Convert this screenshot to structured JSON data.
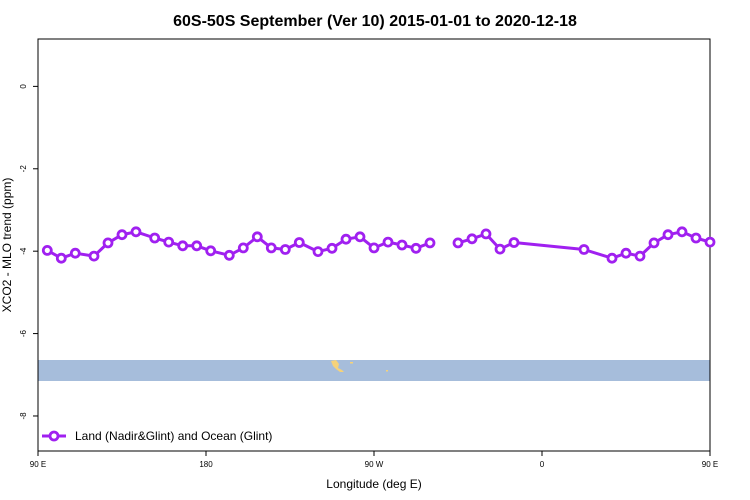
{
  "chart_data": {
    "type": "line",
    "title": "60S-50S September (Ver 10)   2015-01-01 to 2020-12-18",
    "xlabel": "Longitude (deg E)",
    "ylabel": "XCO2 - MLO trend (ppm)",
    "xlim": [
      90,
      450
    ],
    "ylim": [
      -8.85,
      1.15
    ],
    "x_ticks": [
      {
        "value": 90,
        "label": "90 E"
      },
      {
        "value": 180,
        "label": "180"
      },
      {
        "value": 270,
        "label": "90 W"
      },
      {
        "value": 360,
        "label": "0"
      },
      {
        "value": 450,
        "label": "90 E"
      }
    ],
    "y_ticks": [
      {
        "value": 0,
        "label": "0"
      },
      {
        "value": -2,
        "label": "-2"
      },
      {
        "value": -4,
        "label": "-4"
      },
      {
        "value": -6,
        "label": "-6"
      },
      {
        "value": -8,
        "label": "-8"
      }
    ],
    "series": [
      {
        "name": "Land (Nadir&Glint) and Ocean (Glint)",
        "color": "#a020f0",
        "x": [
          95,
          102.5,
          110,
          120,
          127.5,
          135,
          142.5,
          152.5,
          160,
          167.5,
          175,
          182.5,
          192.5,
          200,
          207.5,
          215,
          222.5,
          230,
          240,
          247.5,
          255,
          262.5,
          270,
          277.5,
          285,
          292.5,
          300,
          307.5,
          315,
          322.5,
          330,
          337.5,
          345,
          382.5,
          397.5,
          405,
          412.5,
          420,
          427.5,
          435,
          442.5,
          450
        ],
        "y": [
          -3.98,
          -4.17,
          -4.05,
          -4.12,
          -3.8,
          -3.6,
          -3.53,
          -3.68,
          -3.78,
          -3.87,
          -3.87,
          -3.99,
          -4.1,
          -3.92,
          -3.65,
          -3.92,
          -3.96,
          -3.79,
          -4.01,
          -3.93,
          -3.71,
          -3.65,
          -3.92,
          -3.78,
          -3.85,
          -3.93,
          -3.8,
          null,
          -3.8,
          -3.7,
          -3.58,
          -3.95,
          -3.79,
          -3.96,
          -4.17,
          -4.05,
          -4.12,
          -3.8,
          -3.6,
          -3.53,
          -3.68,
          -3.78
        ]
      }
    ],
    "legend_position": "bottom-left",
    "grid": false
  }
}
